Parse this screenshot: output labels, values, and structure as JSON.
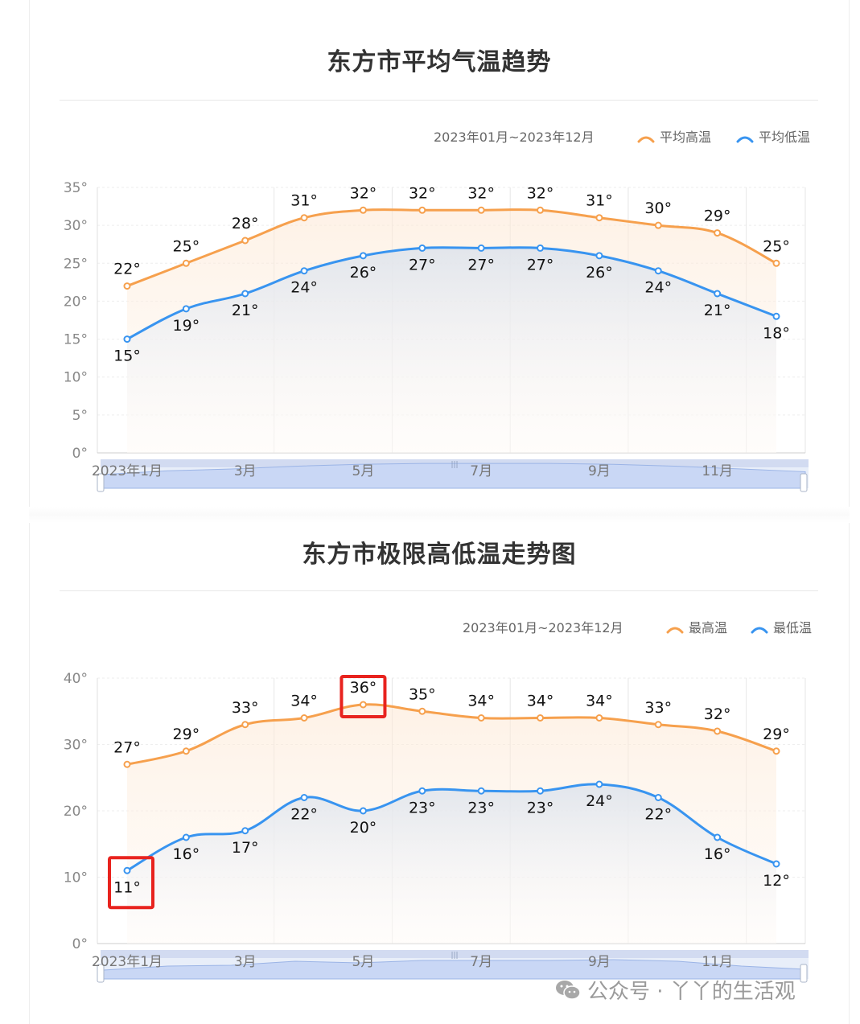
{
  "panels": [
    {
      "title": "东方市平均气温趋势",
      "date_range": "2023年01月~2023年12月",
      "legend": [
        {
          "name": "平均高温",
          "color": "#f6a04d"
        },
        {
          "name": "平均低温",
          "color": "#3894f0"
        }
      ]
    },
    {
      "title": "东方市极限高低温走势图",
      "date_range": "2023年01月~2023年12月",
      "legend": [
        {
          "name": "最高温",
          "color": "#f6a04d"
        },
        {
          "name": "最低温",
          "color": "#3894f0"
        }
      ]
    }
  ],
  "chart_data": [
    {
      "type": "line",
      "title": "东方市平均气温趋势",
      "x_ticks": [
        "2023年1月",
        "3月",
        "5月",
        "7月",
        "9月",
        "11月"
      ],
      "x_tick_positions": [
        1,
        3,
        5,
        7,
        9,
        11
      ],
      "y_ticks": [
        "0°",
        "5°",
        "10°",
        "15°",
        "20°",
        "25°",
        "30°",
        "35°"
      ],
      "ylim": [
        0,
        35
      ],
      "grid": true,
      "legend_position": "top-right",
      "x": [
        1,
        2,
        3,
        4,
        5,
        6,
        7,
        8,
        9,
        10,
        11,
        12
      ],
      "series": [
        {
          "name": "平均高温",
          "color": "#f6a04d",
          "label_pos": "above",
          "values": [
            22,
            25,
            28,
            31,
            32,
            32,
            32,
            32,
            31,
            30,
            29,
            25
          ]
        },
        {
          "name": "平均低温",
          "color": "#3894f0",
          "label_pos": "below",
          "values": [
            15,
            19,
            21,
            24,
            26,
            27,
            27,
            27,
            26,
            24,
            21,
            18
          ]
        }
      ],
      "data_zoom": true
    },
    {
      "type": "line",
      "title": "东方市极限高低温走势图",
      "x_ticks": [
        "2023年1月",
        "3月",
        "5月",
        "7月",
        "9月",
        "11月"
      ],
      "x_tick_positions": [
        1,
        3,
        5,
        7,
        9,
        11
      ],
      "y_ticks": [
        "0°",
        "10°",
        "20°",
        "30°",
        "40°"
      ],
      "ylim": [
        0,
        40
      ],
      "grid": true,
      "legend_position": "top-right",
      "x": [
        1,
        2,
        3,
        4,
        5,
        6,
        7,
        8,
        9,
        10,
        11,
        12
      ],
      "series": [
        {
          "name": "最高温",
          "color": "#f6a04d",
          "label_pos": "above",
          "values": [
            27,
            29,
            33,
            34,
            36,
            35,
            34,
            34,
            34,
            33,
            32,
            29
          ]
        },
        {
          "name": "最低温",
          "color": "#3894f0",
          "label_pos": "below",
          "values": [
            11,
            16,
            17,
            22,
            20,
            23,
            23,
            23,
            24,
            22,
            16,
            12
          ]
        }
      ],
      "highlights": [
        {
          "series": 0,
          "index": 4,
          "color": "#e8231e"
        },
        {
          "series": 1,
          "index": 0,
          "color": "#e8231e"
        }
      ],
      "data_zoom": true
    }
  ],
  "watermark": {
    "text": "公众号 · 丫丫的生活观",
    "icon": "wechat-icon"
  }
}
